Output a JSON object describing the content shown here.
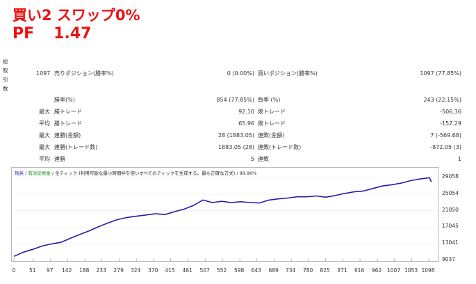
{
  "header": {
    "line1": "買い2 スワップ0%",
    "pf_label": "PF",
    "pf_value": "1.47"
  },
  "side_label": "総取引数",
  "stats": {
    "total_trades": "1097",
    "sell_label": "売りポジション(勝率%)",
    "sell_value": "0 (0.00%)",
    "buy_label": "買いポジション(勝率%)",
    "buy_value": "1097 (77.85%)",
    "winrate_label": "勝率(%)",
    "winrate_value": "854 (77.85%)",
    "lossrate_label": "負率 (%)",
    "lossrate_value": "243 (22.15%)",
    "max_label": "最大",
    "avg_label": "平均",
    "win_trade_label": "勝トレード",
    "max_win_value": "92.10",
    "loss_trade_label": "敗トレード",
    "max_loss_value": "-506.36",
    "avg_win_value": "65.96",
    "avg_loss_value": "-157.29",
    "consec_win_amount_label": "連勝(金額)",
    "max_consec_win_amount_value": "28 (1883.05)",
    "consec_loss_amount_label": "連敗(金額)",
    "max_consec_loss_amount_value": "7 (-569.68)",
    "consec_win_trades_label": "連勝(トレード数)",
    "max_consec_win_trades_value": "1883.05 (28)",
    "consec_loss_trades_label": "連敗(トレード数)",
    "max_consec_loss_trades_value": "-872.05 (3)",
    "consec_win_label": "連勝",
    "avg_consec_win_value": "5",
    "consec_loss_label": "連敗",
    "avg_consec_loss_value": "1"
  },
  "chart_header": {
    "balance": "残高",
    "sep1": " / ",
    "equity": "有効証拠金",
    "sep2": " / 全ティック (利用可能な最小時間枠を使いすべてのティックを生成する。最も正確な方式) / ",
    "quality": "99.90%"
  },
  "colors": {
    "line": "#2a1aa6",
    "title": "#ee1111"
  },
  "chart_data": {
    "type": "line",
    "x_ticks": [
      "0",
      "51",
      "97",
      "142",
      "188",
      "233",
      "279",
      "324",
      "370",
      "415",
      "461",
      "507",
      "552",
      "598",
      "643",
      "689",
      "734",
      "780",
      "825",
      "871",
      "916",
      "962",
      "1007",
      "1053",
      "1098"
    ],
    "y_ticks": [
      "29058",
      "25054",
      "21050",
      "17045",
      "13041",
      "9037"
    ],
    "ylim": [
      9037,
      29058
    ],
    "xlim": [
      0,
      1120
    ],
    "series": [
      {
        "x": [
          0,
          25,
          50,
          75,
          100,
          125,
          150,
          175,
          200,
          225,
          250,
          275,
          300,
          325,
          350,
          375,
          400,
          425,
          450,
          475,
          500,
          525,
          550,
          575,
          600,
          625,
          650,
          675,
          700,
          725,
          750,
          775,
          800,
          825,
          850,
          875,
          900,
          925,
          950,
          975,
          1000,
          1025,
          1050,
          1075,
          1100,
          1105
        ],
        "y": [
          10000,
          11000,
          11700,
          12500,
          13000,
          13400,
          14400,
          15300,
          16200,
          17200,
          18100,
          18900,
          19400,
          19700,
          20000,
          20300,
          20100,
          20800,
          21400,
          22300,
          23600,
          23000,
          23300,
          23000,
          23200,
          23000,
          22900,
          23600,
          23900,
          24100,
          24400,
          24400,
          24600,
          24300,
          24700,
          25200,
          25600,
          25800,
          26400,
          27000,
          27300,
          27700,
          28300,
          28700,
          29000,
          28000
        ]
      }
    ]
  }
}
